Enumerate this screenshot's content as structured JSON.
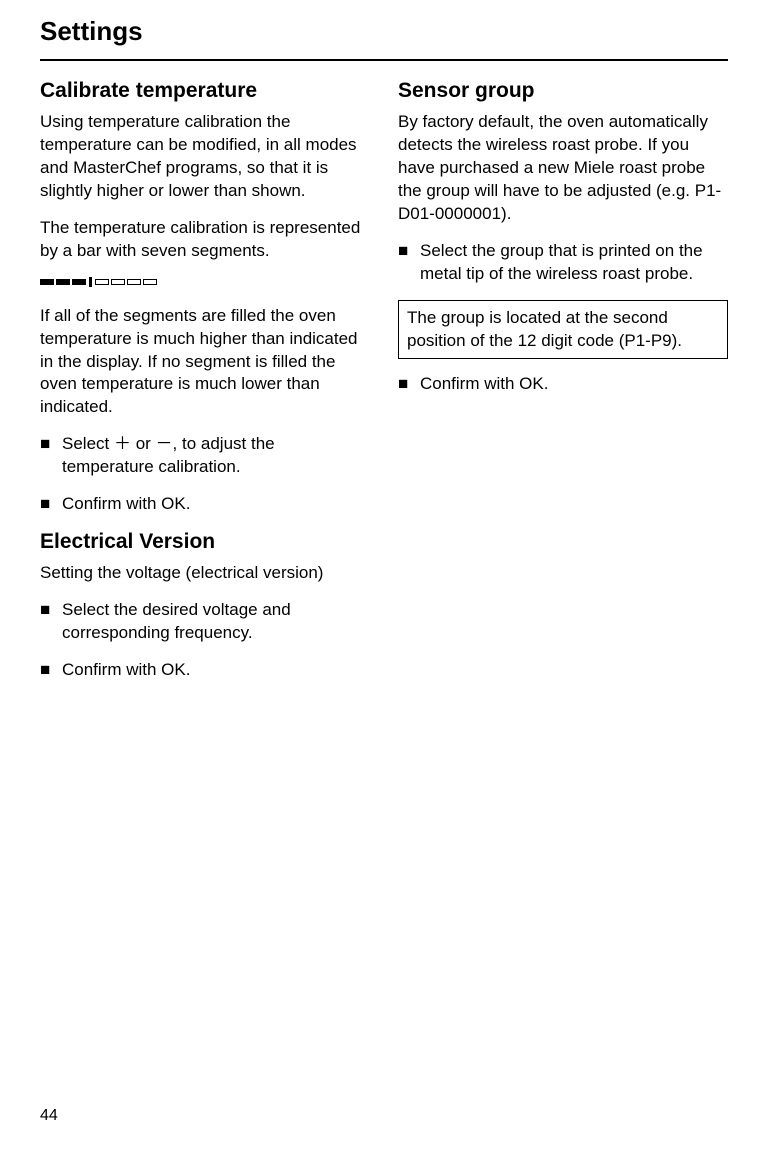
{
  "header": {
    "title": "Settings"
  },
  "colors": {
    "text": "#000000",
    "background": "#ffffff",
    "rule": "#000000",
    "box_border": "#000000"
  },
  "typography": {
    "header_fontsize_pt": 20,
    "section_heading_fontsize_pt": 16,
    "body_fontsize_pt": 13,
    "font_family": "Helvetica"
  },
  "segment_bar": {
    "total_segments": 7,
    "filled_count": 3,
    "center_tick": true,
    "filled_color": "#000000",
    "empty_fill": "#ffffff",
    "border_color": "#000000"
  },
  "left": {
    "calibrate": {
      "heading": "Calibrate temperature",
      "p1": "Using temperature calibration the temperature can be modified, in all modes and MasterChef programs, so that it is slightly higher or lower than shown.",
      "p2": "The temperature calibration is represented by a bar with seven segments.",
      "p3": "If all of the segments are filled the oven temperature is much higher than indicated in the display. If no segment is filled the oven temperature is much lower than indicated.",
      "bullet1": "Select ＋ or －, to adjust the temperature calibration.",
      "bullet2": "Confirm with OK."
    },
    "electrical": {
      "heading": "Electrical Version",
      "p1": "Setting the voltage (electrical version)",
      "bullet1": "Select the desired voltage and corresponding frequency.",
      "bullet2": "Confirm with OK."
    }
  },
  "right": {
    "sensor": {
      "heading": "Sensor group",
      "p1": "By factory default, the oven automatically detects the wireless roast probe. If you have purchased a new Miele roast probe the group will have to be adjusted (e.g. P1-D01-0000001).",
      "bullet1": "Select the group that is printed on the metal tip of the wireless roast probe.",
      "note": "The group is located at the second position of the 12 digit code (P1-P9).",
      "bullet2": "Confirm with OK."
    }
  },
  "page_number": "44",
  "bullet_glyph": "■"
}
